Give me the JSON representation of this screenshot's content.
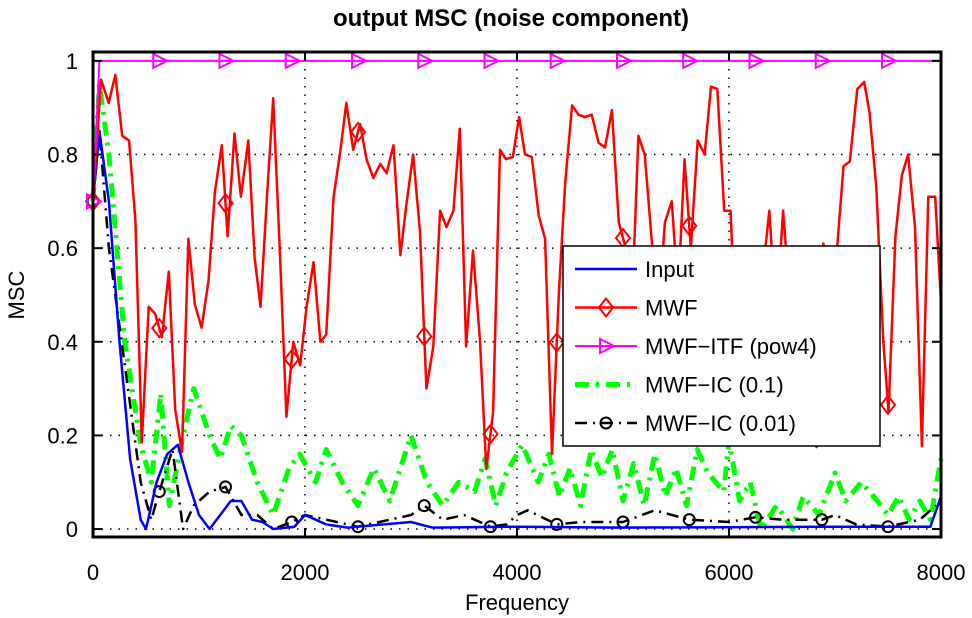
{
  "chart_data": {
    "type": "line",
    "title": "output MSC (noise component)",
    "xlabel": "Frequency",
    "ylabel": "MSC",
    "xlim": [
      0,
      8000
    ],
    "ylim": [
      -0.017,
      1.019
    ],
    "xticks": [
      "0",
      "2000",
      "4000",
      "6000",
      "8000"
    ],
    "yticks": [
      "0",
      "0.2",
      "0.4",
      "0.6",
      "0.8",
      "1"
    ],
    "grid": true,
    "legend_position": "center-right",
    "series": [
      {
        "name": "Input",
        "color": "#0000ff",
        "style": "solid",
        "marker": "none",
        "x": [
          0,
          60,
          150,
          250,
          350,
          450,
          500,
          600,
          700,
          800,
          900,
          1000,
          1100,
          1200,
          1300,
          1400,
          1500,
          1600,
          1700,
          1900,
          2000,
          2100,
          2200,
          2400,
          3000,
          3200,
          4000,
          5000,
          6000,
          7000,
          7900,
          8000
        ],
        "y": [
          0.7,
          0.85,
          0.7,
          0.4,
          0.15,
          0.02,
          0,
          0.1,
          0.16,
          0.18,
          0.1,
          0.03,
          0,
          0.03,
          0.06,
          0.06,
          0.02,
          0.015,
          0,
          0.005,
          0.03,
          0.02,
          0.01,
          0.003,
          0.015,
          0.003,
          0.005,
          0.003,
          0.004,
          0.005,
          0.005,
          0.07
        ]
      },
      {
        "name": "MWF",
        "color": "#ff0000",
        "style": "solid",
        "marker": "diamond",
        "x": [
          0,
          75,
          148,
          210,
          275,
          340,
          400,
          460,
          525,
          585,
          650,
          715,
          775,
          840,
          900,
          960,
          1025,
          1090,
          1150,
          1215,
          1270,
          1335,
          1395,
          1465,
          1525,
          1580,
          1645,
          1700,
          1765,
          1825,
          1890,
          1955,
          2015,
          2080,
          2145,
          2200,
          2270,
          2335,
          2390,
          2455,
          2520,
          2580,
          2645,
          2710,
          2770,
          2835,
          2900,
          2955,
          3020,
          3085,
          3145,
          3210,
          3275,
          3335,
          3400,
          3460,
          3520,
          3585,
          3650,
          3710,
          3775,
          3840,
          3895,
          3960,
          4020,
          4075,
          4140,
          4205,
          4265,
          4330,
          4395,
          4455,
          4520,
          4580,
          4640,
          4705,
          4770,
          4830,
          4895,
          4960,
          5020,
          5080,
          5145,
          5205,
          5270,
          5330,
          5395,
          5460,
          5520,
          5580,
          5640,
          5705,
          5770,
          5830,
          5890,
          5955,
          6015,
          6080,
          6200,
          6320,
          6380,
          6445,
          6510,
          6570,
          6700,
          6760,
          6825,
          6890,
          6950,
          7020,
          7080,
          7140,
          7210,
          7275,
          7325,
          7390,
          7455,
          7505,
          7570,
          7630,
          7690,
          7755,
          7820,
          7880,
          7945,
          8000
        ],
        "y": [
          0.7,
          0.96,
          0.91,
          0.97,
          0.84,
          0.83,
          0.66,
          0.185,
          0.475,
          0.46,
          0.41,
          0.55,
          0.255,
          0.165,
          0.62,
          0.48,
          0.43,
          0.53,
          0.72,
          0.82,
          0.625,
          0.845,
          0.71,
          0.83,
          0.58,
          0.475,
          0.725,
          0.92,
          0.58,
          0.24,
          0.4,
          0.35,
          0.475,
          0.57,
          0.4,
          0.415,
          0.71,
          0.81,
          0.91,
          0.81,
          0.865,
          0.79,
          0.75,
          0.78,
          0.76,
          0.82,
          0.585,
          0.69,
          0.8,
          0.635,
          0.3,
          0.39,
          0.68,
          0.645,
          0.68,
          0.855,
          0.39,
          0.595,
          0.405,
          0.128,
          0.25,
          0.81,
          0.79,
          0.795,
          0.88,
          0.8,
          0.795,
          0.67,
          0.62,
          0.16,
          0.505,
          0.74,
          0.905,
          0.885,
          0.88,
          0.885,
          0.825,
          0.815,
          0.895,
          0.655,
          0.605,
          0.45,
          0.84,
          0.8,
          0.62,
          0.45,
          0.655,
          0.7,
          0.5,
          0.79,
          0.6,
          0.83,
          0.8,
          0.945,
          0.94,
          0.68,
          0.68,
          0.3,
          0.5,
          0.55,
          0.68,
          0.45,
          0.68,
          0.5,
          0.45,
          0.6,
          0.175,
          0.61,
          0.55,
          0.6,
          0.775,
          0.785,
          0.94,
          0.955,
          0.89,
          0.73,
          0.405,
          0.25,
          0.625,
          0.755,
          0.8,
          0.645,
          0.177,
          0.71,
          0.71,
          0.485
        ]
      },
      {
        "name": "MWF−ITF (pow4)",
        "color": "#ff00ff",
        "style": "solid",
        "marker": "triangle-right",
        "x": [
          0,
          60,
          8000
        ],
        "y": [
          0.7,
          1.0,
          1.0
        ]
      },
      {
        "name": "MWF−IC (0.1)",
        "color": "#00ff00",
        "style": "dash-dot",
        "marker": "none",
        "x": [
          0,
          60,
          150,
          300,
          450,
          550,
          640,
          720,
          850,
          950,
          1100,
          1200,
          1300,
          1400,
          1550,
          1700,
          1850,
          1950,
          2100,
          2200,
          2350,
          2500,
          2650,
          2800,
          3000,
          3150,
          3300,
          3450,
          3600,
          3700,
          3800,
          3900,
          4050,
          4200,
          4300,
          4400,
          4500,
          4600,
          4700,
          4800,
          4900,
          5000,
          5100,
          5200,
          5300,
          5400,
          5500,
          5600,
          5700,
          5800,
          5950,
          6000,
          6100,
          6200,
          6300,
          6450,
          6600,
          6700,
          6850,
          7000,
          7100,
          7250,
          7400,
          7500,
          7600,
          7700,
          7800,
          7900,
          8000
        ],
        "y": [
          0.7,
          0.95,
          0.8,
          0.4,
          0.18,
          0.1,
          0.29,
          0.05,
          0.2,
          0.3,
          0.2,
          0.15,
          0.22,
          0.2,
          0.1,
          0.03,
          0.13,
          0.16,
          0.1,
          0.17,
          0.1,
          0.05,
          0.13,
          0.06,
          0.2,
          0.1,
          0.05,
          0.1,
          0.08,
          0.15,
          0.05,
          0.12,
          0.18,
          0.1,
          0.16,
          0.07,
          0.13,
          0.05,
          0.17,
          0.11,
          0.17,
          0.06,
          0.14,
          0.05,
          0.16,
          0.07,
          0.13,
          0.05,
          0.17,
          0.12,
          0.08,
          0.19,
          0.06,
          0.1,
          0.0,
          0.05,
          0.0,
          0.07,
          0.03,
          0.12,
          0.06,
          0.1,
          0.06,
          0.03,
          0.07,
          0.02,
          0.06,
          0.02,
          0.15
        ]
      },
      {
        "name": "MWF−IC (0.01)",
        "color": "#000000",
        "style": "dash-dot",
        "marker": "circle",
        "x": [
          0,
          60,
          150,
          300,
          450,
          550,
          625,
          750,
          850,
          950,
          1100,
          1250,
          1400,
          1550,
          1700,
          1875,
          2000,
          2200,
          2500,
          2800,
          3000,
          3125,
          3300,
          3500,
          3750,
          3900,
          4000,
          4100,
          4375,
          4600,
          5000,
          5300,
          5625,
          6000,
          6250,
          6500,
          6875,
          7000,
          7200,
          7500,
          7800,
          8000
        ],
        "y": [
          0.7,
          0.85,
          0.6,
          0.35,
          0.1,
          0.02,
          0.08,
          0.17,
          0.0,
          0.05,
          0.08,
          0.09,
          0.03,
          0.03,
          0.0,
          0.015,
          0.03,
          0.02,
          0.005,
          0.02,
          0.03,
          0.05,
          0.02,
          0.03,
          0.005,
          0.01,
          0.03,
          0.04,
          0.01,
          0.015,
          0.015,
          0.04,
          0.02,
          0.015,
          0.025,
          0.02,
          0.02,
          0.03,
          0.01,
          0.005,
          0.02,
          0.06
        ]
      }
    ]
  }
}
